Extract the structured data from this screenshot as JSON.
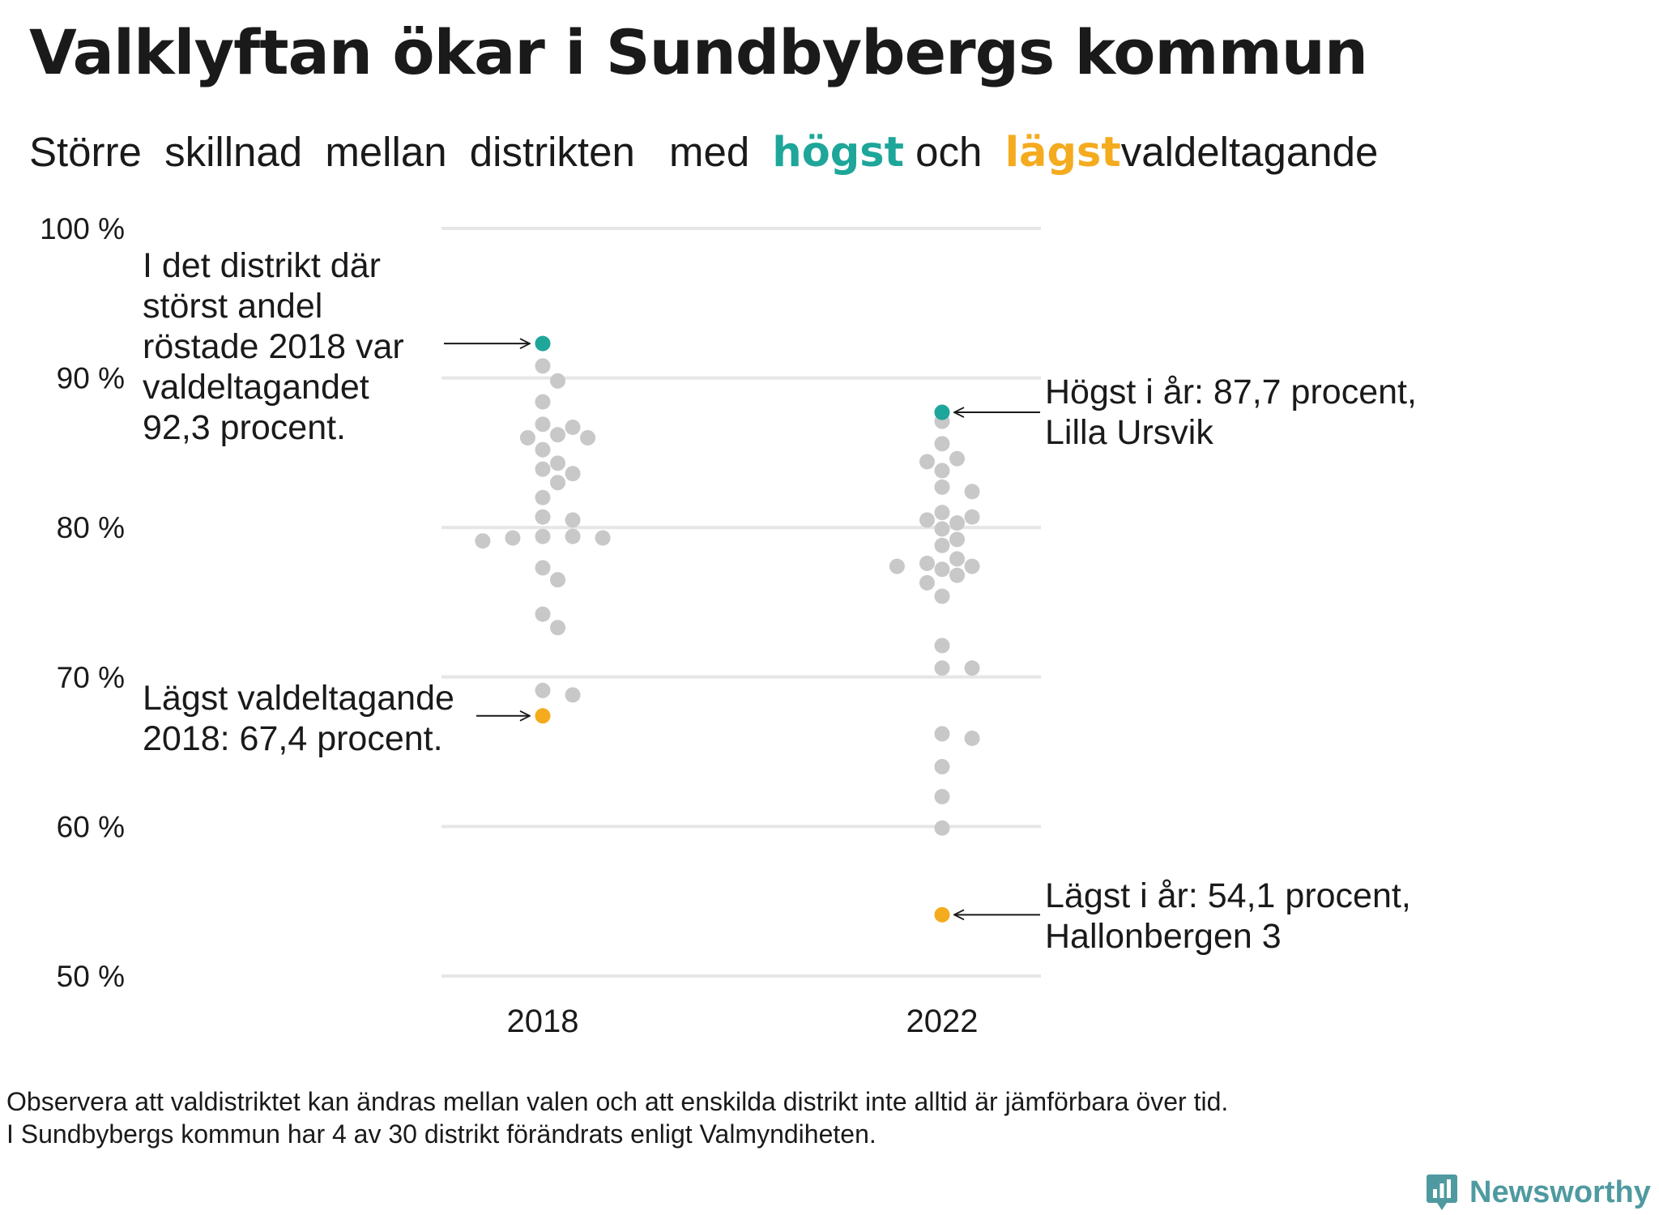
{
  "title": "Valklyftan ökar i Sundbybergs kommun",
  "subtitle": {
    "part1": "Större",
    "part2": "skillnad",
    "part3": "mellan",
    "part4": "distrikten",
    "part5": "med",
    "highest_word": "högst",
    "and_word": "och",
    "lowest_word": "lägst",
    "end_word": "valdeltagande"
  },
  "colors": {
    "highest": "#1ea69a",
    "lowest": "#f5ab1e",
    "other": "#c8c8c8",
    "grid": "#e6e6e6",
    "brand": "#4f9aa0"
  },
  "chart_data": {
    "type": "scatter",
    "title": "Valklyftan ökar i Sundbybergs kommun",
    "categories": [
      "2018",
      "2022"
    ],
    "ylim": [
      50,
      100
    ],
    "yticks": [
      {
        "value": 100,
        "label": "100 %"
      },
      {
        "value": 90,
        "label": "90 %"
      },
      {
        "value": 80,
        "label": "80 %"
      },
      {
        "value": 70,
        "label": "70 %"
      },
      {
        "value": 60,
        "label": "60 %"
      },
      {
        "value": 50,
        "label": "50 %"
      }
    ],
    "grid": true,
    "series": [
      {
        "x": "2018",
        "highest": 92.3,
        "lowest": 67.4,
        "values": [
          90.8,
          89.8,
          88.4,
          86.9,
          86.7,
          86.2,
          86.0,
          86.0,
          85.2,
          84.3,
          83.9,
          83.6,
          83.0,
          82.0,
          80.7,
          80.5,
          79.4,
          79.4,
          79.3,
          79.3,
          79.1,
          77.3,
          76.5,
          74.2,
          73.3,
          69.1,
          68.8
        ]
      },
      {
        "x": "2022",
        "highest": 87.7,
        "lowest": 54.1,
        "values": [
          87.1,
          85.6,
          84.6,
          84.4,
          83.8,
          82.7,
          82.4,
          81.0,
          80.7,
          80.5,
          80.3,
          79.9,
          79.2,
          78.8,
          77.9,
          77.6,
          77.4,
          77.4,
          77.2,
          76.8,
          76.3,
          75.4,
          72.1,
          70.6,
          70.6,
          66.2,
          65.9,
          64.0,
          62.0,
          59.9
        ]
      }
    ],
    "annotations": {
      "top_left": [
        "I det distrikt där",
        "störst andel",
        "röstade 2018 var",
        "valdeltagandet",
        "92,3 procent."
      ],
      "bottom_left": [
        "Lägst valdeltagande",
        "2018: 67,4 procent."
      ],
      "top_right": [
        "Högst i år: 87,7 procent,",
        "Lilla Ursvik"
      ],
      "bottom_right": [
        "Lägst i år: 54,1 procent,",
        "Hallonbergen 3"
      ]
    }
  },
  "footnote": {
    "line1": "Observera att valdistriktet kan ändras mellan valen och att enskilda distrikt inte alltid är jämförbara över tid.",
    "line2": "I Sundbybergs kommun har 4 av 30 distrikt förändrats enligt Valmyndiheten."
  },
  "brand": {
    "name": "Newsworthy",
    "icon": "bar-chart-icon"
  }
}
